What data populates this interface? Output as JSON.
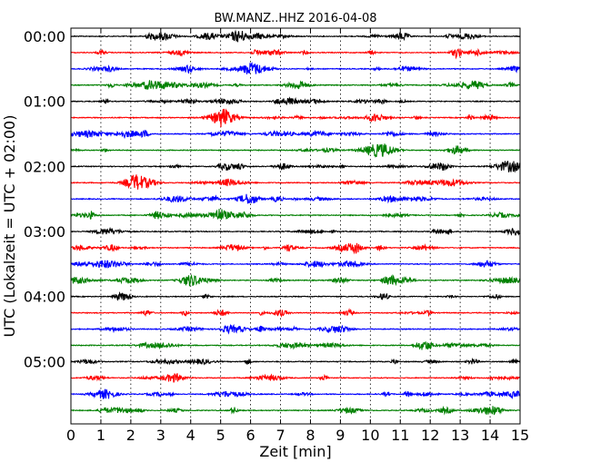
{
  "chart_data": {
    "type": "line",
    "title": "BW.MANZ..HHZ 2016-04-08",
    "xlabel": "Zeit  [min]",
    "ylabel": "UTC (Lokalzeit = UTC + 02:00)",
    "xlim": [
      0,
      15
    ],
    "x_ticks": [
      "0",
      "1",
      "2",
      "3",
      "4",
      "5",
      "6",
      "7",
      "8",
      "9",
      "10",
      "11",
      "12",
      "13",
      "14",
      "15"
    ],
    "x_grid": "vertical dotted lines at each minute",
    "y_ticks": [
      "00:00",
      "01:00",
      "02:00",
      "03:00",
      "04:00",
      "05:00"
    ],
    "interval_minutes": 15,
    "trace_count": 24,
    "colors": [
      "#000000",
      "#ff0000",
      "#0000ff",
      "#008000"
    ]
  }
}
